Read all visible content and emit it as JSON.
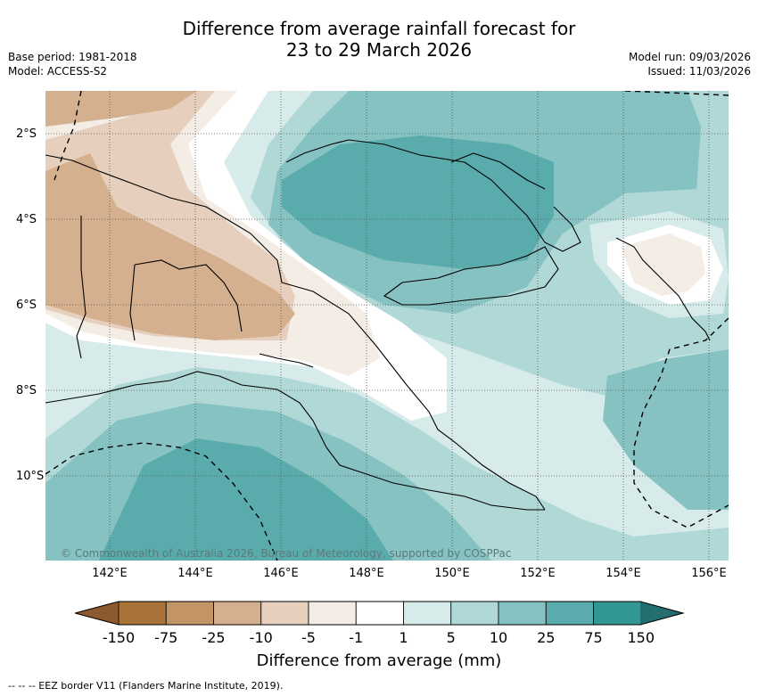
{
  "title": {
    "line1": "Difference from average rainfall forecast for",
    "line2": "23 to 29 March 2026"
  },
  "meta": {
    "base_period": "Base period: 1981-2018",
    "model": "Model: ACCESS-S2",
    "model_run": "Model run: 09/03/2026",
    "issued": "Issued: 11/03/2026"
  },
  "axes": {
    "lat_labels": [
      "2°S",
      "4°S",
      "6°S",
      "8°S",
      "10°S"
    ],
    "lon_labels": [
      "142°E",
      "144°E",
      "146°E",
      "148°E",
      "150°E",
      "152°E",
      "154°E",
      "156°E"
    ]
  },
  "copyright": "© Commonwealth of Australia 2026, Bureau of Meteorology, supported by COSPPac",
  "colorbar": {
    "title": "Difference from average (mm)",
    "ticks": [
      "-150",
      "-75",
      "-25",
      "-10",
      "-5",
      "-1",
      "1",
      "5",
      "10",
      "25",
      "75",
      "150"
    ],
    "colors": [
      "#8c5a2c",
      "#a87239",
      "#c39465",
      "#d5b08e",
      "#e6d0bd",
      "#f3ede6",
      "#ffffff",
      "#d6ebea",
      "#b0d8d7",
      "#86c2c1",
      "#5aacac",
      "#339894",
      "#236e6e"
    ]
  },
  "eez_legend": "--  --  -- EEZ border V11 (Flanders Marine Institute, 2019)."
}
